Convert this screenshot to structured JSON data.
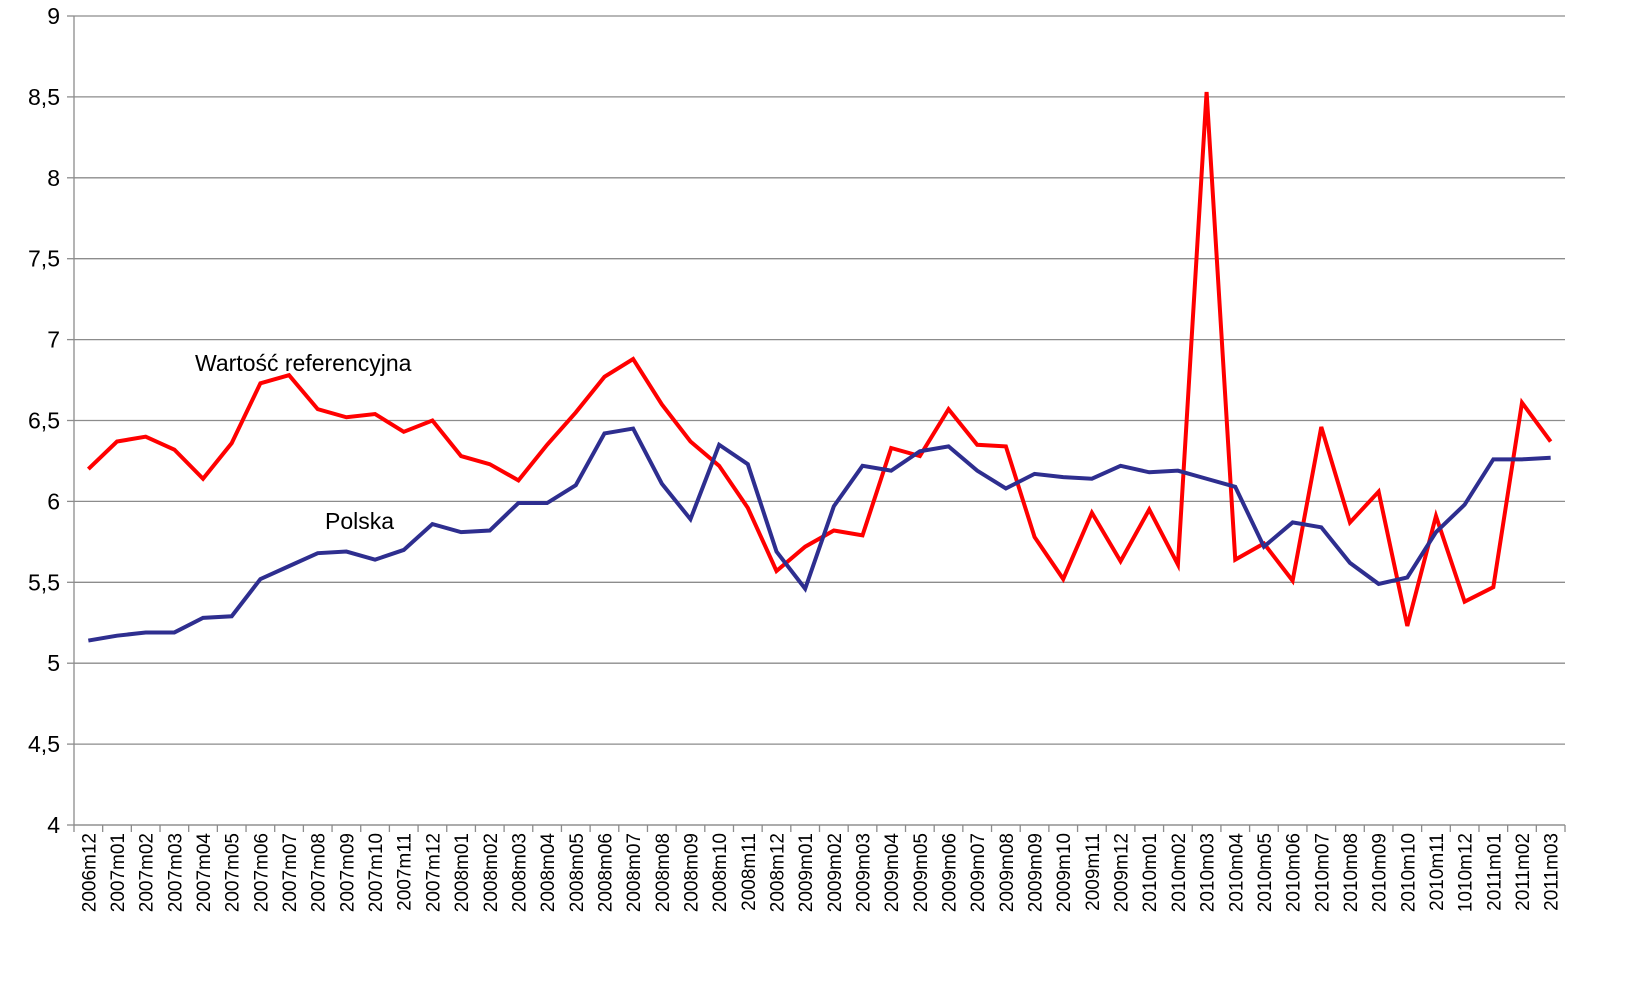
{
  "chart_data": {
    "type": "line",
    "categories": [
      "2006m12",
      "2007m01",
      "2007m02",
      "2007m03",
      "2007m04",
      "2007m05",
      "2007m06",
      "2007m07",
      "2007m08",
      "2007m09",
      "2007m10",
      "2007m11",
      "2007m12",
      "2008m01",
      "2008m02",
      "2008m03",
      "2008m04",
      "2008m05",
      "2008m06",
      "2008m07",
      "2008m08",
      "2008m09",
      "2008m10",
      "2008m11",
      "2008m12",
      "2009m01",
      "2009m02",
      "2009m03",
      "2009m04",
      "2009m05",
      "2009m06",
      "2009m07",
      "2009m08",
      "2009m09",
      "2009m10",
      "2009m11",
      "2009m12",
      "2010m01",
      "2010m02",
      "2010m03",
      "2010m04",
      "2010m05",
      "2010m06",
      "2010m07",
      "2010m08",
      "2010m09",
      "2010m10",
      "2010m11",
      "1010m12",
      "2011m01",
      "2011m02",
      "2011m03"
    ],
    "series": [
      {
        "name": "Wartość referencyjna",
        "color": "#ff0000",
        "values": [
          6.2,
          6.37,
          6.4,
          6.32,
          6.14,
          6.36,
          6.73,
          6.78,
          6.57,
          6.52,
          6.54,
          6.43,
          6.5,
          6.28,
          6.23,
          6.13,
          6.35,
          6.55,
          6.77,
          6.88,
          6.6,
          6.37,
          6.22,
          5.96,
          5.57,
          5.72,
          5.82,
          5.79,
          6.33,
          6.28,
          6.57,
          6.35,
          6.34,
          5.78,
          5.52,
          5.93,
          5.63,
          5.95,
          5.61,
          8.53,
          5.64,
          5.74,
          5.51,
          6.46,
          5.87,
          6.06,
          5.23,
          5.91,
          5.38,
          5.47,
          6.61,
          6.37
        ]
      },
      {
        "name": "Polska",
        "color": "#2e2e8f",
        "values": [
          5.14,
          5.17,
          5.19,
          5.19,
          5.28,
          5.29,
          5.52,
          5.6,
          5.68,
          5.69,
          5.64,
          5.7,
          5.86,
          5.81,
          5.82,
          5.99,
          5.99,
          6.1,
          6.42,
          6.45,
          6.11,
          5.89,
          6.35,
          6.23,
          5.69,
          5.46,
          5.97,
          6.22,
          6.19,
          6.31,
          6.34,
          6.19,
          6.08,
          6.17,
          6.15,
          6.14,
          6.22,
          6.18,
          6.19,
          6.14,
          6.09,
          5.72,
          5.87,
          5.84,
          5.62,
          5.49,
          5.53,
          5.81,
          5.98,
          6.26,
          6.26,
          6.27
        ]
      }
    ],
    "ylim": [
      4,
      9
    ],
    "yticks": [
      4,
      {
        "value": 4.5,
        "label": "4,5"
      },
      5,
      {
        "value": 5.5,
        "label": "5,5"
      },
      6,
      {
        "value": 6.5,
        "label": "6,5"
      },
      7,
      {
        "value": 7.5,
        "label": "7,5"
      },
      8,
      {
        "value": 8.5,
        "label": "8,5"
      },
      9
    ],
    "grid": true
  }
}
